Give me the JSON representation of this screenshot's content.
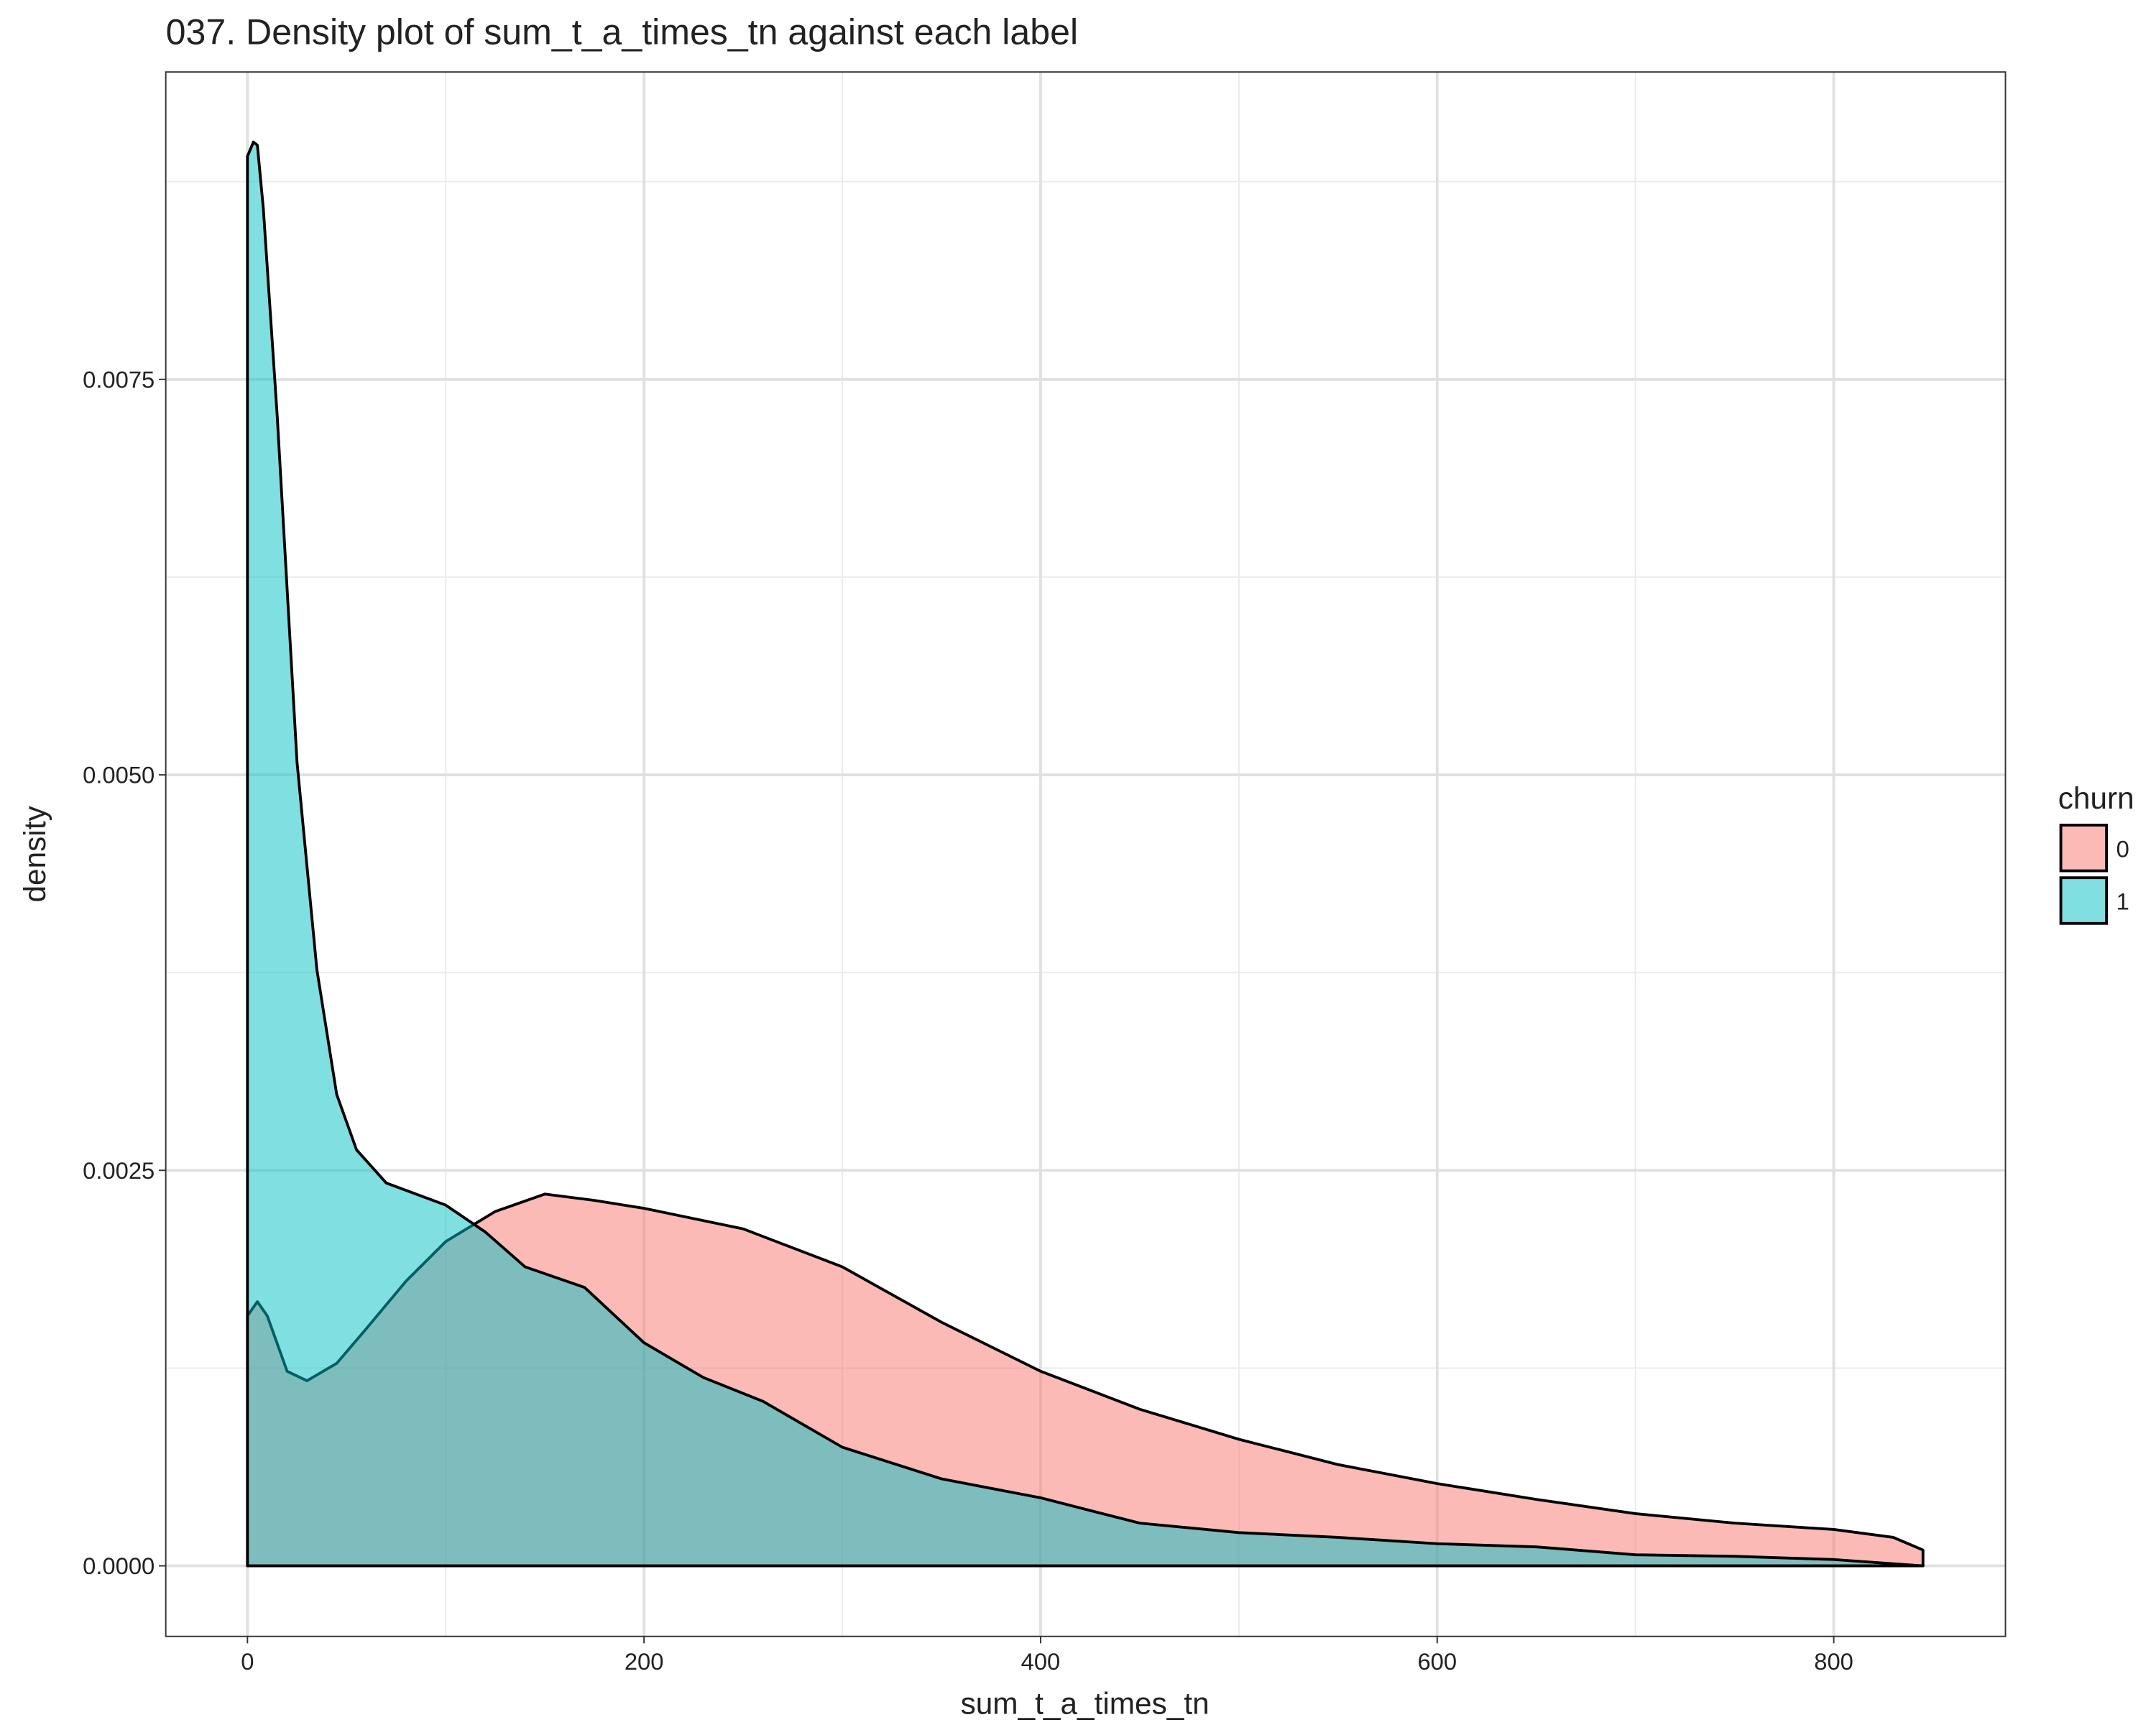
{
  "chart_data": {
    "type": "density",
    "title": "037. Density plot of sum_t_a_times_tn against each label",
    "x_label": "sum_t_a_times_tn",
    "y_label": "density",
    "legend_title": "churn",
    "legend_position": "right",
    "grid": true,
    "xlim": [
      -41.2,
      886.6
    ],
    "ylim": [
      -0.000446,
      0.009443
    ],
    "xticks": [
      0,
      200,
      400,
      600,
      800
    ],
    "yticks": [
      {
        "value": 0,
        "label": "0.0000"
      },
      {
        "value": 0.0025,
        "label": "0.0025"
      },
      {
        "value": 0.005,
        "label": "0.0050"
      },
      {
        "value": 0.0075,
        "label": "0.0075"
      }
    ],
    "series": [
      {
        "name": "0",
        "color": "#F8766D",
        "x": [
          0,
          5,
          10,
          20,
          30,
          45,
          60,
          80,
          100,
          125,
          150,
          175,
          200,
          250,
          300,
          350,
          400,
          450,
          500,
          550,
          600,
          650,
          700,
          750,
          800,
          830,
          845
        ],
        "values": [
          0.00158,
          0.00167,
          0.00158,
          0.00123,
          0.00117,
          0.00128,
          0.0015,
          0.0018,
          0.00205,
          0.00224,
          0.00235,
          0.00231,
          0.00226,
          0.00213,
          0.00189,
          0.00154,
          0.00123,
          0.00099,
          0.0008,
          0.00064,
          0.00052,
          0.00042,
          0.00033,
          0.00027,
          0.00023,
          0.00018,
          0.0001
        ]
      },
      {
        "name": "1",
        "color": "#00BFC4",
        "x": [
          0,
          3,
          5,
          8,
          15,
          25,
          35,
          45,
          55,
          70,
          85,
          100,
          120,
          140,
          170,
          200,
          230,
          260,
          300,
          350,
          400,
          450,
          500,
          550,
          600,
          650,
          700,
          750,
          800,
          845
        ],
        "values": [
          0.00891,
          0.009,
          0.00898,
          0.00858,
          0.00727,
          0.00508,
          0.00377,
          0.00298,
          0.00263,
          0.00242,
          0.00235,
          0.00228,
          0.00211,
          0.00189,
          0.00176,
          0.00141,
          0.00119,
          0.00104,
          0.00075,
          0.00055,
          0.00043,
          0.00027,
          0.00021,
          0.00018,
          0.00014,
          0.00012,
          7e-05,
          6e-05,
          4e-05,
          0
        ]
      }
    ]
  }
}
